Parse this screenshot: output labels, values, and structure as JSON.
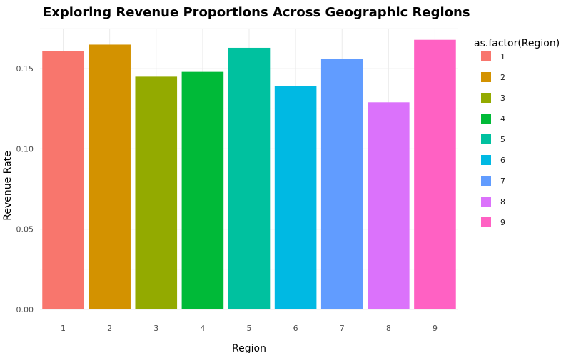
{
  "chart_data": {
    "type": "bar",
    "title": "Exploring Revenue Proportions Across Geographic Regions",
    "xlabel": "Region",
    "ylabel": "Revenue Rate",
    "categories": [
      "1",
      "2",
      "3",
      "4",
      "5",
      "6",
      "7",
      "8",
      "9"
    ],
    "values": [
      0.161,
      0.165,
      0.145,
      0.148,
      0.163,
      0.139,
      0.156,
      0.129,
      0.168
    ],
    "colors": [
      "#F8766D",
      "#D39200",
      "#93AA00",
      "#00BA38",
      "#00C19F",
      "#00B9E3",
      "#619CFF",
      "#DB72FB",
      "#FF61C3"
    ],
    "ylim": [
      0,
      0.175
    ],
    "yticks": [
      0.0,
      0.05,
      0.1,
      0.15
    ],
    "ytick_labels": [
      "0.00",
      "0.05",
      "0.10",
      "0.15"
    ],
    "grid": true,
    "legend": {
      "title": "as.factor(Region)",
      "placement": "right",
      "entries": [
        "1",
        "2",
        "3",
        "4",
        "5",
        "6",
        "7",
        "8",
        "9"
      ]
    }
  }
}
